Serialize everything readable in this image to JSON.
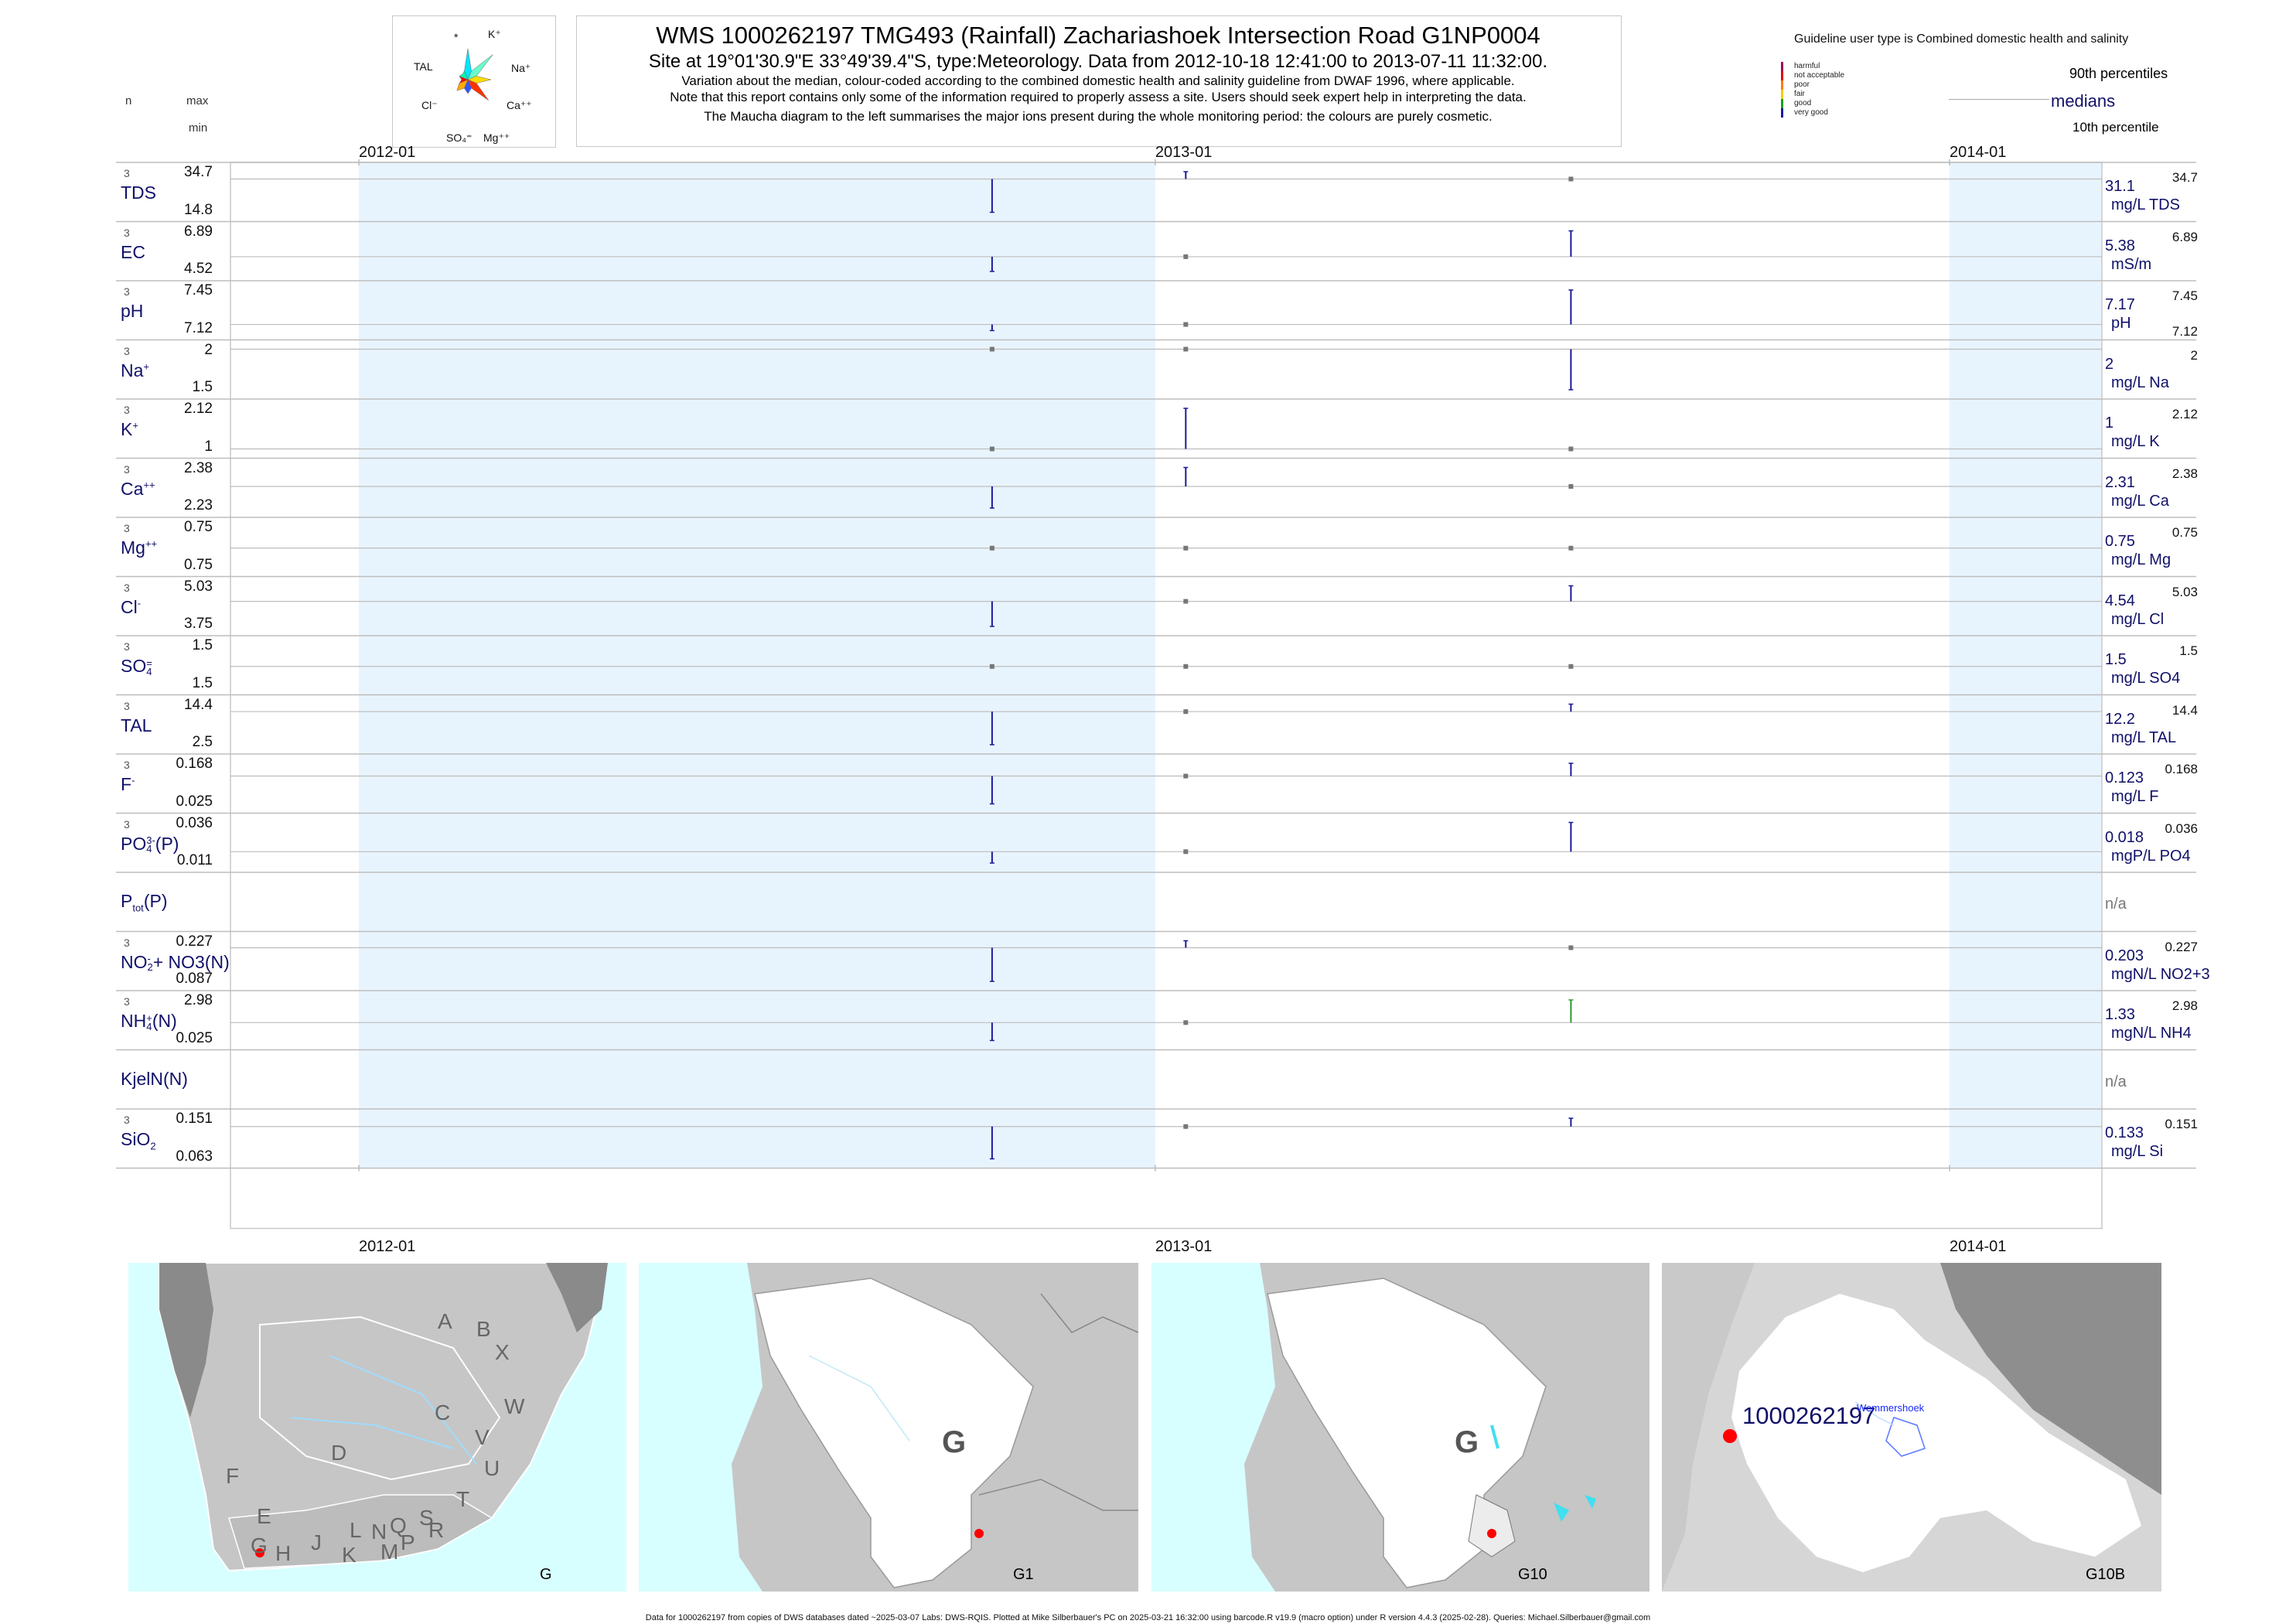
{
  "header": {
    "title": "WMS 1000262197  TMG493 (Rainfall) Zachariashoek Intersection Road G1NP0004",
    "subtitle": "Site at 19°01'30.9\"E 33°49'39.4\"S, type:Meteorology.  Data from 2012-10-18 12:41:00 to 2013-07-11 11:32:00.",
    "note1": "Variation about the median,  colour-coded according to the combined domestic health and salinity guideline from DWAF 1996, where applicable.",
    "note2": "Note that this report contains only some of the information required to properly assess a site. Users should seek expert help in interpreting the data.",
    "note3": "The Maucha diagram to the left summarises the major ions present during the whole monitoring period: the colours are purely cosmetic.",
    "col_n": "n",
    "col_max": "max",
    "col_min": "min"
  },
  "maucha": {
    "labels": [
      "*",
      "K⁺",
      "TAL",
      "Na⁺",
      "Cl⁻",
      "Ca⁺⁺",
      "SO₄⁼",
      "Mg⁺⁺"
    ],
    "colors": [
      "#00e5ff",
      "#66ffcc",
      "#ffdd00",
      "#ff3300",
      "#3355ff",
      "#ffaa00",
      "#ff0000",
      "#00ffaa"
    ]
  },
  "legend": {
    "title": "Guideline user type is Combined domestic health and salinity",
    "items": [
      {
        "label": "harmful",
        "color": "#9b0067"
      },
      {
        "label": "not acceptable",
        "color": "#e60000"
      },
      {
        "label": "poor",
        "color": "#ff7b00"
      },
      {
        "label": "fair",
        "color": "#f0d000"
      },
      {
        "label": "good",
        "color": "#1e9e1e"
      },
      {
        "label": "very good",
        "color": "#1a1aa0"
      }
    ],
    "p90": "90th percentiles",
    "medians": "medians",
    "p10": "10th percentile"
  },
  "chart_data": {
    "type": "line",
    "x_axis_ticks": [
      "2012-01",
      "2013-01",
      "2014-01"
    ],
    "sample_dates": [
      "2012-10-18",
      "2013-01-15",
      "2013-07-11"
    ],
    "series": [
      {
        "name": "TDS",
        "n": 3,
        "max": 34.7,
        "min": 14.8,
        "median": 31.1,
        "unit": "mg/L TDS",
        "values": [
          14.8,
          34.7,
          31.1
        ]
      },
      {
        "name": "EC",
        "n": 3,
        "max": 6.89,
        "min": 4.52,
        "median": 5.38,
        "unit": "mS/m",
        "values": [
          4.52,
          5.38,
          6.89
        ]
      },
      {
        "name": "pH",
        "n": 3,
        "max": 7.45,
        "min": 7.12,
        "median": 7.17,
        "unit": "pH",
        "values": [
          7.12,
          7.17,
          7.45
        ]
      },
      {
        "name": "Na+",
        "n": 3,
        "max": 2,
        "min": 1.5,
        "median": 2,
        "unit": "mg/L Na",
        "values": [
          2,
          2,
          1.5
        ]
      },
      {
        "name": "K+",
        "n": 3,
        "max": 2.12,
        "min": 1,
        "median": 1,
        "unit": "mg/L K",
        "values": [
          1,
          2.12,
          1
        ]
      },
      {
        "name": "Ca++",
        "n": 3,
        "max": 2.38,
        "min": 2.23,
        "median": 2.31,
        "unit": "mg/L Ca",
        "values": [
          2.23,
          2.38,
          2.31
        ]
      },
      {
        "name": "Mg++",
        "n": 3,
        "max": 0.75,
        "min": 0.75,
        "median": 0.75,
        "unit": "mg/L Mg",
        "values": [
          0.75,
          0.75,
          0.75
        ]
      },
      {
        "name": "Cl-",
        "n": 3,
        "max": 5.03,
        "min": 3.75,
        "median": 4.54,
        "unit": "mg/L Cl",
        "values": [
          3.75,
          4.54,
          5.03
        ]
      },
      {
        "name": "SO4=",
        "n": 3,
        "max": 1.5,
        "min": 1.5,
        "median": 1.5,
        "unit": "mg/L SO4",
        "values": [
          1.5,
          1.5,
          1.5
        ]
      },
      {
        "name": "TAL",
        "n": 3,
        "max": 14.4,
        "min": 2.5,
        "median": 12.2,
        "unit": "mg/L TAL",
        "values": [
          2.5,
          12.2,
          14.4
        ]
      },
      {
        "name": "F-",
        "n": 3,
        "max": 0.168,
        "min": 0.025,
        "median": 0.123,
        "unit": "mg/L F",
        "values": [
          0.025,
          0.123,
          0.168
        ]
      },
      {
        "name": "PO4(P)",
        "n": 3,
        "max": 0.036,
        "min": 0.011,
        "median": 0.018,
        "unit": "mgP/L PO4",
        "values": [
          0.011,
          0.018,
          0.036
        ]
      },
      {
        "name": "Ptot(P)",
        "n": 0,
        "max": null,
        "min": null,
        "median": null,
        "unit": "n/a",
        "values": []
      },
      {
        "name": "NO2+NO3(N)",
        "n": 3,
        "max": 0.227,
        "min": 0.087,
        "median": 0.203,
        "unit": "mgN/L NO2+3",
        "values": [
          0.087,
          0.227,
          0.203
        ]
      },
      {
        "name": "NH4(N)",
        "n": 3,
        "max": 2.98,
        "min": 0.025,
        "median": 1.33,
        "unit": "mgN/L NH4",
        "values": [
          0.025,
          1.33,
          2.98
        ]
      },
      {
        "name": "KjelN(N)",
        "n": 0,
        "max": null,
        "min": null,
        "median": null,
        "unit": "n/a",
        "values": []
      },
      {
        "name": "SiO2",
        "n": 3,
        "max": 0.151,
        "min": 0.063,
        "median": 0.133,
        "unit": "mg/L Si",
        "values": [
          0.063,
          0.133,
          0.151
        ]
      }
    ]
  },
  "rows_display": [
    {
      "n": "3",
      "name": "TDS",
      "sup": "",
      "sub": "",
      "max": "34.7",
      "min": "14.8",
      "median": "31.1",
      "unit": "mg/L TDS",
      "rmax": "34.7",
      "rmin": ""
    },
    {
      "n": "3",
      "name": "EC",
      "sup": "",
      "sub": "",
      "max": "6.89",
      "min": "4.52",
      "median": "5.38",
      "unit": "mS/m",
      "rmax": "6.89",
      "rmin": ""
    },
    {
      "n": "3",
      "name": "pH",
      "sup": "",
      "sub": "",
      "max": "7.45",
      "min": "7.12",
      "median": "7.17",
      "unit": "pH",
      "rmax": "7.45",
      "rmin": "7.12"
    },
    {
      "n": "3",
      "name": "Na",
      "sup": "+",
      "sub": "",
      "max": "2",
      "min": "1.5",
      "median": "2",
      "unit": "mg/L Na",
      "rmax": "2",
      "rmin": ""
    },
    {
      "n": "3",
      "name": "K",
      "sup": "+",
      "sub": "",
      "max": "2.12",
      "min": "1",
      "median": "1",
      "unit": "mg/L K",
      "rmax": "2.12",
      "rmin": ""
    },
    {
      "n": "3",
      "name": "Ca",
      "sup": "++",
      "sub": "",
      "max": "2.38",
      "min": "2.23",
      "median": "2.31",
      "unit": "mg/L Ca",
      "rmax": "2.38",
      "rmin": ""
    },
    {
      "n": "3",
      "name": "Mg",
      "sup": "++",
      "sub": "",
      "max": "0.75",
      "min": "0.75",
      "median": "0.75",
      "unit": "mg/L Mg",
      "rmax": "0.75",
      "rmin": ""
    },
    {
      "n": "3",
      "name": "Cl",
      "sup": "-",
      "sub": "",
      "max": "5.03",
      "min": "3.75",
      "median": "4.54",
      "unit": "mg/L Cl",
      "rmax": "5.03",
      "rmin": ""
    },
    {
      "n": "3",
      "name": "SO",
      "sup": "=",
      "sub": "4",
      "max": "1.5",
      "min": "1.5",
      "median": "1.5",
      "unit": "mg/L SO4",
      "rmax": "1.5",
      "rmin": ""
    },
    {
      "n": "3",
      "name": "TAL",
      "sup": "",
      "sub": "",
      "max": "14.4",
      "min": "2.5",
      "median": "12.2",
      "unit": "mg/L TAL",
      "rmax": "14.4",
      "rmin": ""
    },
    {
      "n": "3",
      "name": "F",
      "sup": "-",
      "sub": "",
      "max": "0.168",
      "min": "0.025",
      "median": "0.123",
      "unit": "mg/L F",
      "rmax": "0.168",
      "rmin": ""
    },
    {
      "n": "3",
      "name": "PO",
      "sup": "3-",
      "sub": "4",
      "tail": "(P)",
      "max": "0.036",
      "min": "0.011",
      "median": "0.018",
      "unit": "mgP/L PO4",
      "rmax": "0.036",
      "rmin": ""
    },
    {
      "n": "",
      "name": "P",
      "sup": "",
      "sub": "tot",
      "tail": "(P)",
      "max": "",
      "min": "",
      "median": "n/a",
      "unit": "",
      "rmax": "",
      "rmin": ""
    },
    {
      "n": "3",
      "name": "NO",
      "sup": "-",
      "sub": "2",
      "tail": "+ NO3(N)",
      "max": "0.227",
      "min": "0.087",
      "median": "0.203",
      "unit": "mgN/L NO2+3",
      "rmax": "0.227",
      "rmin": ""
    },
    {
      "n": "3",
      "name": "NH",
      "sup": "+",
      "sub": "4",
      "tail": "(N)",
      "max": "2.98",
      "min": "0.025",
      "median": "1.33",
      "unit": "mgN/L NH4",
      "rmax": "2.98",
      "rmin": ""
    },
    {
      "n": "",
      "name": "KjelN(N)",
      "sup": "",
      "sub": "",
      "max": "",
      "min": "",
      "median": "n/a",
      "unit": "",
      "rmax": "",
      "rmin": ""
    },
    {
      "n": "3",
      "name": "SiO",
      "sup": "",
      "sub": "2",
      "max": "0.151",
      "min": "0.063",
      "median": "0.133",
      "unit": "mg/L Si",
      "rmax": "0.151",
      "rmin": ""
    }
  ],
  "maps": {
    "labels": [
      "G",
      "G1",
      "G10",
      "G10B"
    ],
    "big_letter": "G",
    "site_label": "1000262197",
    "place_label": "Wemmershoek",
    "region_letters": [
      "A",
      "B",
      "X",
      "W",
      "C",
      "V",
      "U",
      "D",
      "T",
      "F",
      "E",
      "S",
      "R",
      "Q",
      "N",
      "L",
      "J",
      "P",
      "M",
      "K",
      "H",
      "G"
    ]
  },
  "footer": "Data for 1000262197 from copies of DWS databases dated ~2025-03-07 Labs: DWS-RQIS. Plotted at Mike Silberbauer's PC on 2025-03-21 16:32:00 using barcode.R v19.9 (macro option) under R version 4.4.3 (2025-02-28). Queries: Michael.Silberbauer@gmail.com"
}
